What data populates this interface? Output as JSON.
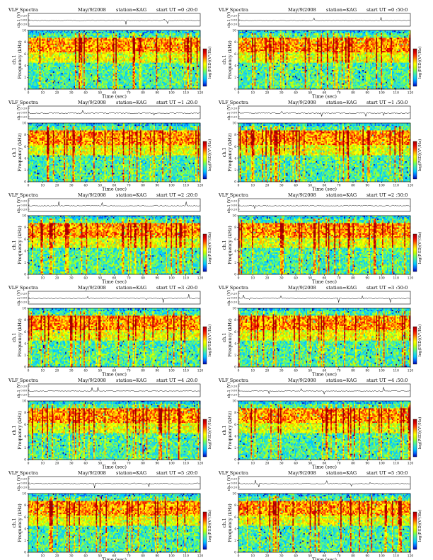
{
  "common": {
    "product": "VLF Spectra",
    "date": "May/9/2008",
    "station": "station=KAG",
    "start_prefix": "start  UT =",
    "ch_label": "ch.1 (V)",
    "ylabel_lines": [
      "ch.1",
      "Frequency  (kHz)"
    ],
    "xlabel": "Time  (sec)",
    "colorbar_label": "log(PSD)(V²/Hz)"
  },
  "colors": {
    "spectrogram": [
      "#0000a8",
      "#0066ff",
      "#00c8ff",
      "#33e0c8",
      "#66ff66",
      "#c8ff00",
      "#ffff00",
      "#ffb000",
      "#ff4000",
      "#e00000",
      "#a00000"
    ],
    "trace": "#000000",
    "frame": "#000000"
  },
  "chart_data": [
    {
      "type": "heatmap",
      "start_time": "0 :20:0",
      "x_ticks": [
        "0",
        "10",
        "20",
        "30",
        "40",
        "50",
        "60",
        "70",
        "80",
        "90",
        "100",
        "110",
        "120"
      ],
      "y_ticks": [
        "0",
        "2",
        "4",
        "6",
        "8",
        "10"
      ],
      "trace_ticks": [
        "0.20",
        "0.00",
        "-0.20"
      ],
      "xlim": [
        0,
        120
      ],
      "ylim": [
        0,
        10
      ]
    },
    {
      "type": "heatmap",
      "start_time": "0 :50:0",
      "x_ticks": [
        "0",
        "10",
        "20",
        "30",
        "40",
        "50",
        "60",
        "70",
        "80",
        "90",
        "100",
        "110",
        "120"
      ],
      "y_ticks": [
        "0",
        "2",
        "4",
        "6",
        "8",
        "10"
      ],
      "trace_ticks": [
        "0.20",
        "0.00",
        "-0.20"
      ],
      "xlim": [
        0,
        120
      ],
      "ylim": [
        0,
        10
      ]
    },
    {
      "type": "heatmap",
      "start_time": "1 :20:0",
      "x_ticks": [
        "0",
        "10",
        "20",
        "30",
        "40",
        "50",
        "60",
        "70",
        "80",
        "90",
        "100",
        "110",
        "120"
      ],
      "y_ticks": [
        "0",
        "2",
        "4",
        "6",
        "8",
        "10"
      ],
      "trace_ticks": [
        "0.20",
        "0.00",
        "-0.20"
      ],
      "xlim": [
        0,
        120
      ],
      "ylim": [
        0,
        10
      ]
    },
    {
      "type": "heatmap",
      "start_time": "1 :50:0",
      "x_ticks": [
        "0",
        "10",
        "20",
        "30",
        "40",
        "50",
        "60",
        "70",
        "80",
        "90",
        "100",
        "110",
        "120"
      ],
      "y_ticks": [
        "0",
        "2",
        "4",
        "6",
        "8",
        "10"
      ],
      "trace_ticks": [
        "0.20",
        "0.00",
        "-0.20"
      ],
      "xlim": [
        0,
        120
      ],
      "ylim": [
        0,
        10
      ]
    },
    {
      "type": "heatmap",
      "start_time": "2 :20:0",
      "x_ticks": [
        "0",
        "10",
        "20",
        "30",
        "40",
        "50",
        "60",
        "70",
        "80",
        "90",
        "100",
        "110",
        "120"
      ],
      "y_ticks": [
        "0",
        "2",
        "4",
        "6",
        "8",
        "10"
      ],
      "trace_ticks": [
        "0.20",
        "0.00",
        "-0.20"
      ],
      "xlim": [
        0,
        120
      ],
      "ylim": [
        0,
        10
      ]
    },
    {
      "type": "heatmap",
      "start_time": "2 :50:0",
      "x_ticks": [
        "0",
        "10",
        "20",
        "30",
        "40",
        "50",
        "60",
        "70",
        "80",
        "90",
        "100",
        "110",
        "120"
      ],
      "y_ticks": [
        "0",
        "2",
        "4",
        "6",
        "8",
        "10"
      ],
      "trace_ticks": [
        "0.20",
        "0.00",
        "-0.20"
      ],
      "xlim": [
        0,
        120
      ],
      "ylim": [
        0,
        10
      ]
    },
    {
      "type": "heatmap",
      "start_time": "3 :20:0",
      "x_ticks": [
        "0",
        "10",
        "20",
        "30",
        "40",
        "50",
        "60",
        "70",
        "80",
        "90",
        "100",
        "110",
        "120"
      ],
      "y_ticks": [
        "0",
        "2",
        "4",
        "6",
        "8",
        "10"
      ],
      "trace_ticks": [
        "0.20",
        "0.00",
        "-0.20"
      ],
      "xlim": [
        0,
        120
      ],
      "ylim": [
        0,
        10
      ]
    },
    {
      "type": "heatmap",
      "start_time": "3 :50:0",
      "x_ticks": [
        "0",
        "10",
        "20",
        "30",
        "40",
        "50",
        "60",
        "70",
        "80",
        "90",
        "100",
        "110",
        "120"
      ],
      "y_ticks": [
        "0",
        "2",
        "4",
        "6",
        "8",
        "10"
      ],
      "trace_ticks": [
        "0.20",
        "0.00",
        "-0.20"
      ],
      "xlim": [
        0,
        120
      ],
      "ylim": [
        0,
        10
      ]
    },
    {
      "type": "heatmap",
      "start_time": "4 :20:0",
      "x_ticks": [
        "0",
        "10",
        "20",
        "30",
        "40",
        "50",
        "60",
        "70",
        "80",
        "90",
        "100",
        "110",
        "120"
      ],
      "y_ticks": [
        "0",
        "2",
        "4",
        "6",
        "8",
        "10"
      ],
      "trace_ticks": [
        "0.20",
        "0.00",
        "-0.20"
      ],
      "xlim": [
        0,
        120
      ],
      "ylim": [
        0,
        10
      ]
    },
    {
      "type": "heatmap",
      "start_time": "4 :50:0",
      "x_ticks": [
        "0",
        "10",
        "20",
        "30",
        "40",
        "50",
        "60",
        "70",
        "80",
        "90",
        "100",
        "110",
        "120"
      ],
      "y_ticks": [
        "0",
        "2",
        "4",
        "6",
        "8",
        "10"
      ],
      "trace_ticks": [
        "0.20",
        "0.00",
        "-0.20"
      ],
      "xlim": [
        0,
        120
      ],
      "ylim": [
        0,
        10
      ]
    },
    {
      "type": "heatmap",
      "start_time": "5 :20:0",
      "x_ticks": [
        "0",
        "10",
        "20",
        "30",
        "40",
        "50",
        "60",
        "70",
        "80",
        "90",
        "100",
        "110",
        "120"
      ],
      "y_ticks": [
        "0",
        "2",
        "4",
        "6",
        "8",
        "10"
      ],
      "trace_ticks": [
        "0.20",
        "0.00",
        "-0.20"
      ],
      "xlim": [
        0,
        120
      ],
      "ylim": [
        0,
        10
      ]
    },
    {
      "type": "heatmap",
      "start_time": "5 :50:0",
      "x_ticks": [
        "0",
        "10",
        "20",
        "30",
        "40",
        "50",
        "60",
        "70",
        "80",
        "90",
        "100",
        "110",
        "120"
      ],
      "y_ticks": [
        "0",
        "2",
        "4",
        "6",
        "8",
        "10"
      ],
      "trace_ticks": [
        "0.20",
        "0.00",
        "-0.20"
      ],
      "xlim": [
        0,
        120
      ],
      "ylim": [
        0,
        10
      ]
    }
  ]
}
